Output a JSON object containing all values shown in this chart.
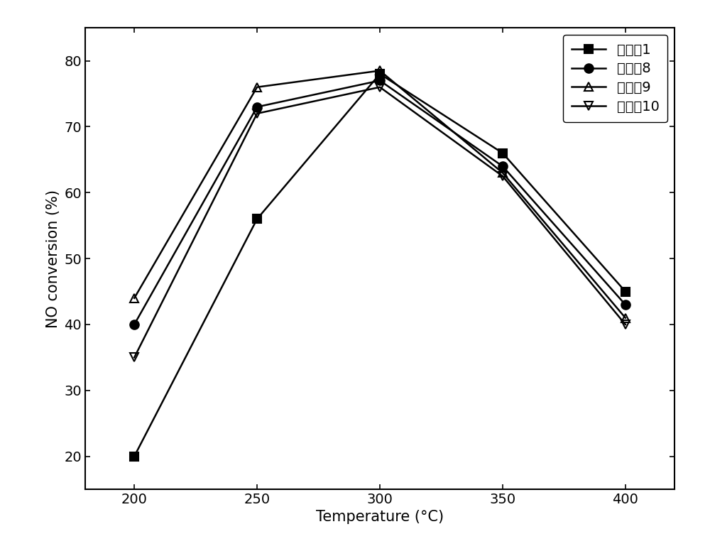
{
  "x": [
    200,
    250,
    300,
    350,
    400
  ],
  "series": [
    {
      "label": "催化兡1",
      "values": [
        20,
        56,
        78,
        66,
        45
      ],
      "marker": "s",
      "marker_size": 9,
      "color": "#000000",
      "fillstyle": "full"
    },
    {
      "label": "催化兡8",
      "values": [
        40,
        73,
        77,
        64,
        43
      ],
      "marker": "o",
      "marker_size": 9,
      "color": "#000000",
      "fillstyle": "full"
    },
    {
      "label": "催化兡9",
      "values": [
        44,
        76,
        78.5,
        63,
        41
      ],
      "marker": "^",
      "marker_size": 9,
      "color": "#000000",
      "fillstyle": "none"
    },
    {
      "label": "催化剢10",
      "values": [
        35,
        72,
        76,
        62.5,
        40
      ],
      "marker": "v",
      "marker_size": 9,
      "color": "#000000",
      "fillstyle": "none"
    }
  ],
  "xlabel": "Temperature (°C)",
  "ylabel": "NO conversion (%)",
  "xlim": [
    180,
    420
  ],
  "ylim": [
    15,
    85
  ],
  "xticks": [
    200,
    250,
    300,
    350,
    400
  ],
  "yticks": [
    20,
    30,
    40,
    50,
    60,
    70,
    80
  ],
  "linewidth": 1.8,
  "legend_loc": "upper right",
  "legend_fontsize": 14,
  "axis_fontsize": 15,
  "tick_fontsize": 14,
  "background_color": "#ffffff"
}
